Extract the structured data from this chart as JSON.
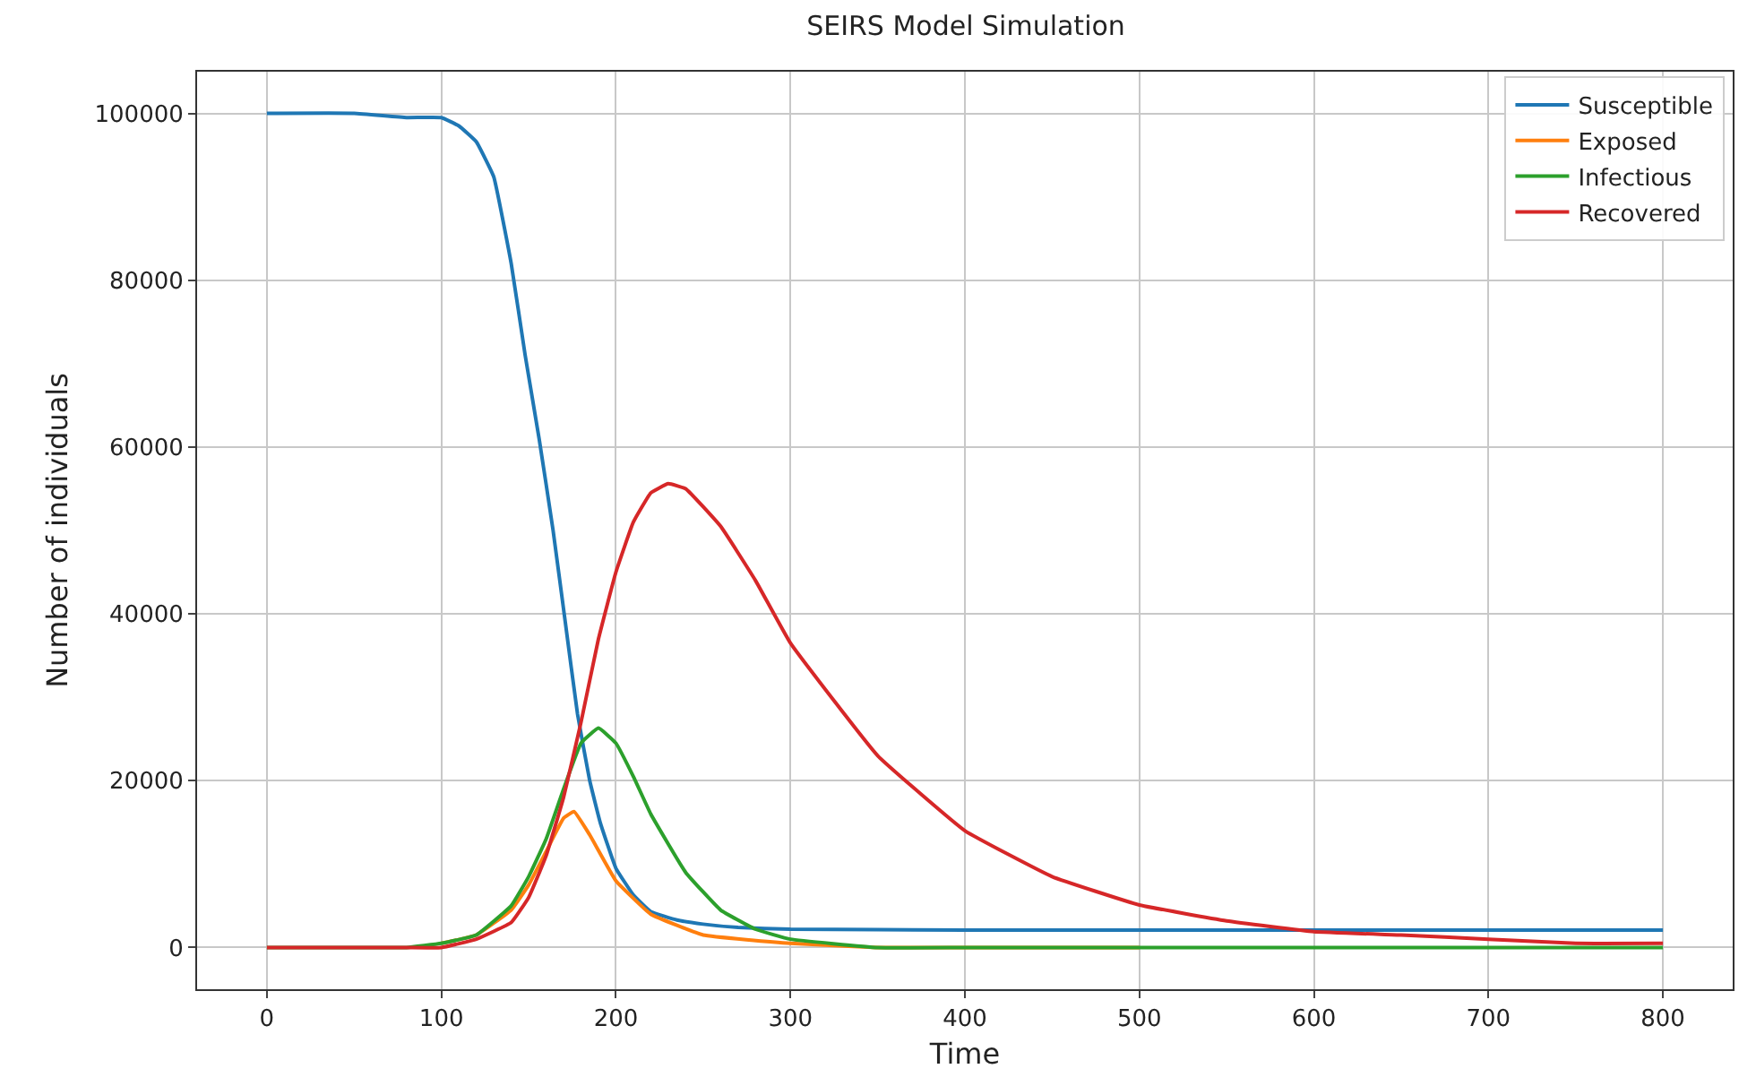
{
  "chart_data": {
    "type": "line",
    "title": "SEIRS Model Simulation",
    "xlabel": "Time",
    "ylabel": "Number of individuals",
    "xlim": [
      -40,
      840
    ],
    "xticks": [
      0,
      100,
      200,
      300,
      400,
      500,
      600,
      700,
      800
    ],
    "ylim": [
      -5000,
      105000
    ],
    "yticks": [
      0,
      20000,
      40000,
      60000,
      80000,
      100000
    ],
    "grid": true,
    "legend": "top right",
    "marker": "none",
    "line_style": "solid",
    "series": [
      {
        "name": "Susceptible",
        "color": "#1f77b4",
        "x": [
          0,
          50,
          80,
          100,
          110,
          120,
          130,
          140,
          148,
          156,
          164,
          171,
          178,
          185,
          191,
          200,
          210,
          220,
          235,
          250,
          270,
          300,
          400,
          500,
          600,
          700,
          800
        ],
        "values": [
          100000,
          100000,
          99500,
          99500,
          98500,
          96600,
          92400,
          82000,
          71000,
          61000,
          50000,
          39000,
          28000,
          20000,
          15000,
          9500,
          6300,
          4300,
          3300,
          2800,
          2400,
          2200,
          2100,
          2100,
          2100,
          2100,
          2100
        ]
      },
      {
        "name": "Exposed",
        "color": "#ff7f0e",
        "x": [
          100,
          120,
          140,
          150,
          160,
          170,
          176,
          185,
          200,
          220,
          250,
          300,
          350,
          400,
          500
        ],
        "values": [
          500,
          1500,
          4500,
          7500,
          11500,
          15500,
          16300,
          13500,
          8000,
          4000,
          1500,
          500,
          0,
          0,
          0
        ]
      },
      {
        "name": "Infectious",
        "color": "#2ca02c",
        "x": [
          0,
          50,
          80,
          100,
          120,
          140,
          150,
          160,
          170,
          180,
          190,
          200,
          210,
          220,
          240,
          260,
          280,
          300,
          350,
          400,
          500,
          600,
          700,
          800
        ],
        "values": [
          0,
          0,
          0,
          500,
          1500,
          5000,
          8500,
          13000,
          19000,
          24500,
          26300,
          24500,
          20500,
          16000,
          9000,
          4500,
          2200,
          1000,
          0,
          0,
          0,
          0,
          0,
          0
        ]
      },
      {
        "name": "Recovered",
        "color": "#d62728",
        "x": [
          0,
          50,
          80,
          100,
          120,
          140,
          150,
          160,
          170,
          180,
          190,
          200,
          210,
          220,
          230,
          240,
          260,
          280,
          300,
          350,
          400,
          450,
          500,
          550,
          600,
          650,
          700,
          750,
          800
        ],
        "values": [
          0,
          0,
          0,
          0,
          1000,
          3000,
          6000,
          11000,
          18000,
          27000,
          37000,
          45000,
          51000,
          54500,
          55600,
          55000,
          50500,
          44000,
          36500,
          23000,
          14000,
          8500,
          5100,
          3200,
          1900,
          1500,
          1000,
          500,
          500
        ]
      }
    ]
  }
}
